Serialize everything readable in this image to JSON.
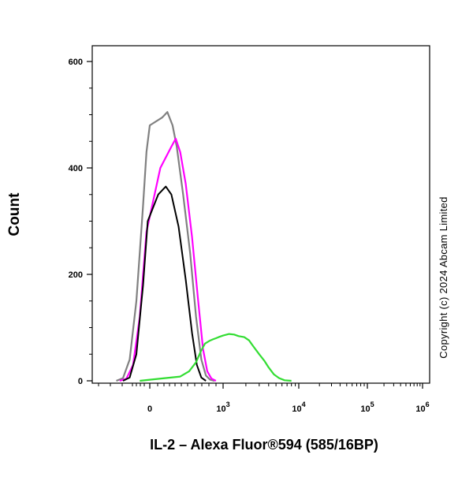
{
  "chart_data": {
    "type": "line",
    "title": "",
    "xlabel": "IL-2 – Alexa Fluor®594 (585/16BP)",
    "ylabel": "Count",
    "copyright": "Copyright (c) 2024 Abcam Limited",
    "x_scale": "biexponential",
    "y_ticks": [
      "0",
      "200",
      "400",
      "600"
    ],
    "x_ticks": [
      {
        "base": "0",
        "exp": ""
      },
      {
        "base": "10",
        "exp": "3"
      },
      {
        "base": "10",
        "exp": "4"
      },
      {
        "base": "10",
        "exp": "5"
      },
      {
        "base": "10",
        "exp": "6"
      }
    ],
    "ylim": [
      0,
      620
    ],
    "grid": false,
    "series": [
      {
        "color": "#808080",
        "points": [
          [
            -500,
            0
          ],
          [
            -400,
            5
          ],
          [
            -300,
            40
          ],
          [
            -200,
            150
          ],
          [
            -100,
            330
          ],
          [
            -50,
            430
          ],
          [
            0,
            480
          ],
          [
            25,
            495
          ],
          [
            40,
            505
          ],
          [
            60,
            480
          ],
          [
            80,
            440
          ],
          [
            120,
            350
          ],
          [
            180,
            240
          ],
          [
            250,
            120
          ],
          [
            330,
            40
          ],
          [
            420,
            10
          ],
          [
            520,
            2
          ],
          [
            650,
            0
          ]
        ]
      },
      {
        "color": "#ff00ff",
        "points": [
          [
            -450,
            0
          ],
          [
            -350,
            4
          ],
          [
            -250,
            30
          ],
          [
            -150,
            120
          ],
          [
            -50,
            280
          ],
          [
            20,
            400
          ],
          [
            55,
            440
          ],
          [
            75,
            455
          ],
          [
            100,
            430
          ],
          [
            140,
            370
          ],
          [
            200,
            270
          ],
          [
            280,
            150
          ],
          [
            360,
            60
          ],
          [
            450,
            18
          ],
          [
            560,
            4
          ],
          [
            700,
            0
          ]
        ]
      },
      {
        "color": "#000000",
        "points": [
          [
            -400,
            0
          ],
          [
            -300,
            6
          ],
          [
            -200,
            50
          ],
          [
            -100,
            180
          ],
          [
            -30,
            300
          ],
          [
            15,
            350
          ],
          [
            35,
            365
          ],
          [
            55,
            350
          ],
          [
            90,
            290
          ],
          [
            140,
            190
          ],
          [
            200,
            90
          ],
          [
            260,
            30
          ],
          [
            330,
            6
          ],
          [
            420,
            0
          ]
        ]
      },
      {
        "color": "#33dd33",
        "points": [
          [
            -150,
            0
          ],
          [
            0,
            2
          ],
          [
            100,
            8
          ],
          [
            170,
            18
          ],
          [
            250,
            35
          ],
          [
            320,
            55
          ],
          [
            400,
            70
          ],
          [
            500,
            75
          ],
          [
            600,
            78
          ],
          [
            700,
            80
          ],
          [
            800,
            82
          ],
          [
            1000,
            85
          ],
          [
            1200,
            88
          ],
          [
            1400,
            87
          ],
          [
            1600,
            84
          ],
          [
            1900,
            82
          ],
          [
            2200,
            76
          ],
          [
            2500,
            65
          ],
          [
            3000,
            50
          ],
          [
            3500,
            38
          ],
          [
            4000,
            25
          ],
          [
            4700,
            12
          ],
          [
            5500,
            5
          ],
          [
            6500,
            1
          ],
          [
            8000,
            0
          ]
        ]
      }
    ]
  }
}
